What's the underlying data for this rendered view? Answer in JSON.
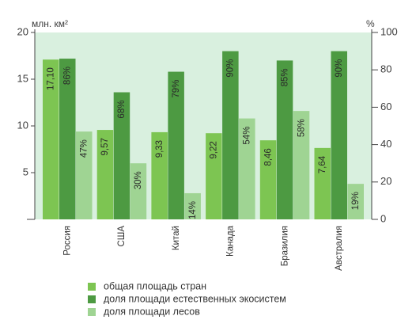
{
  "chart_data": {
    "type": "bar",
    "categories": [
      "Россия",
      "США",
      "Китай",
      "Канада",
      "Бразилия",
      "Австралия"
    ],
    "series": [
      {
        "name": "общая площадь стран",
        "axis": "left",
        "values": [
          17.1,
          9.57,
          9.33,
          9.22,
          8.46,
          7.64
        ],
        "labels": [
          "17,10",
          "9,57",
          "9,33",
          "9,22",
          "8,46",
          "7,64"
        ],
        "color": "#7dc552"
      },
      {
        "name": "доля площади естественных экосистем",
        "axis": "right",
        "values": [
          86,
          68,
          79,
          90,
          85,
          90
        ],
        "labels": [
          "86%",
          "68%",
          "79%",
          "90%",
          "85%",
          "90%"
        ],
        "color": "#4d9a42"
      },
      {
        "name": "доля площади лесов",
        "axis": "right",
        "values": [
          47,
          30,
          14,
          54,
          58,
          19
        ],
        "labels": [
          "47%",
          "30%",
          "14%",
          "54%",
          "58%",
          "19%"
        ],
        "color": "#9fd493"
      }
    ],
    "left_axis": {
      "unit_label": "млн. км²",
      "range": [
        0,
        20
      ],
      "ticks": [
        5,
        10,
        15,
        20
      ],
      "tick_labels": [
        "5",
        "10",
        "15",
        "20"
      ]
    },
    "right_axis": {
      "unit_label": "%",
      "range": [
        0,
        100
      ],
      "ticks": [
        0,
        20,
        40,
        60,
        80,
        100
      ],
      "tick_labels": [
        "0",
        "20",
        "40",
        "60",
        "80",
        "100"
      ]
    },
    "grid": false,
    "legend_position": "bottom-left",
    "colors": {
      "plot_background": "#d9f0df",
      "axis": "#444444"
    }
  }
}
